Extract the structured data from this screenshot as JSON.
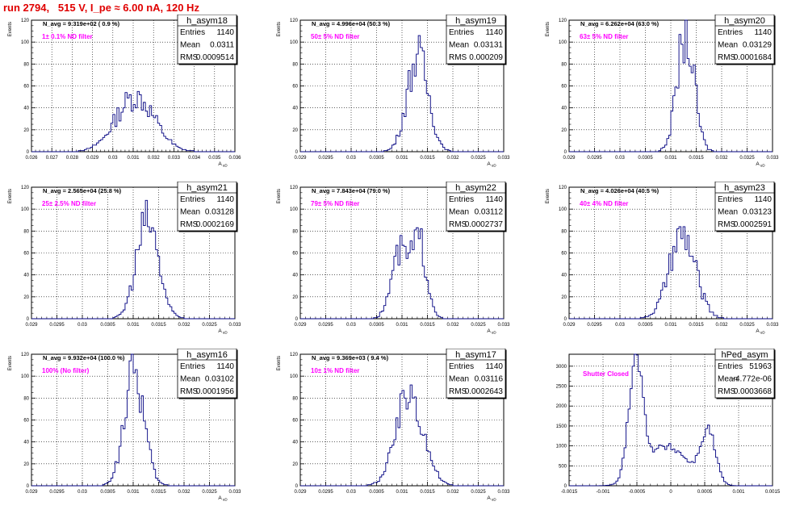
{
  "page_title": "run 2794,   515 V, I_pe ≈ 6.00 nA, 120 Hz",
  "colors": {
    "title": "#e00000",
    "histogram": "#000080",
    "annotation": "#ff00ff",
    "grid": "#000000"
  },
  "chart_data": [
    {
      "type": "histogram",
      "name": "h_asym18",
      "entries": "1140",
      "mean": "0.0311",
      "rms": "0.0009514",
      "navg": "N_avg = 9.319e+02 ( 0.9 %)",
      "filter": "1± 0.1% ND filter",
      "ylabel": "Events",
      "xlabel": "A_uD",
      "xlim": [
        0.026,
        0.036
      ],
      "ylim": [
        0,
        120
      ],
      "yticks": [
        0,
        20,
        40,
        60,
        80,
        100,
        120
      ],
      "xticks": [
        0.026,
        0.027,
        0.028,
        0.029,
        0.03,
        0.031,
        0.032,
        0.033,
        0.034,
        0.035,
        0.036
      ],
      "xticklabels": [
        "0.026",
        "0.027",
        "0.028",
        "0.029",
        "0.03",
        "0.031",
        "0.032",
        "0.033",
        "0.034",
        "0.035",
        "0.036"
      ],
      "mu": 0.0311,
      "sigma": 0.00095,
      "peak": 50,
      "binw": 0.0001
    },
    {
      "type": "histogram",
      "name": "h_asym19",
      "entries": "1140",
      "mean": "0.03131",
      "rms": "0.000209",
      "navg": "N_avg = 4.996e+04 (50.3 %)",
      "filter": "50± 5% ND filter",
      "ylabel": "Events",
      "xlabel": "A_uD",
      "xlim": [
        0.029,
        0.033
      ],
      "ylim": [
        0,
        120
      ],
      "yticks": [
        0,
        20,
        40,
        60,
        80,
        100,
        120
      ],
      "xticks": [
        0.029,
        0.0295,
        0.03,
        0.0305,
        0.031,
        0.0315,
        0.032,
        0.0325,
        0.033
      ],
      "xticklabels": [
        "0.029",
        "0.0295",
        "0.03",
        "0.0305",
        "0.031",
        "0.0315",
        "0.032",
        "0.0325",
        "0.033"
      ],
      "mu": 0.03131,
      "sigma": 0.000209,
      "peak": 87,
      "binw": 4e-05
    },
    {
      "type": "histogram",
      "name": "h_asym20",
      "entries": "1140",
      "mean": "0.03129",
      "rms": "0.0001684",
      "navg": "N_avg = 6.262e+04 (63.0 %)",
      "filter": "63± 5% ND filter",
      "ylabel": "Events",
      "xlabel": "A_uD",
      "xlim": [
        0.029,
        0.033
      ],
      "ylim": [
        0,
        120
      ],
      "yticks": [
        0,
        20,
        40,
        60,
        80,
        100,
        120
      ],
      "xticks": [
        0.029,
        0.0295,
        0.03,
        0.0305,
        0.031,
        0.0315,
        0.032,
        0.0325,
        0.033
      ],
      "xticklabels": [
        "0.029",
        "0.0295",
        "0.03",
        "0.0305",
        "0.031",
        "0.0315",
        "0.032",
        "0.0325",
        "0.033"
      ],
      "mu": 0.03129,
      "sigma": 0.000168,
      "peak": 107,
      "binw": 4e-05
    },
    {
      "type": "histogram",
      "name": "h_asym21",
      "entries": "1140",
      "mean": "0.03128",
      "rms": "0.0002169",
      "navg": "N_avg = 2.565e+04 (25.8 %)",
      "filter": "25± 2.5% ND filter",
      "ylabel": "Events",
      "xlabel": "A_uD",
      "xlim": [
        0.029,
        0.033
      ],
      "ylim": [
        0,
        120
      ],
      "yticks": [
        0,
        20,
        40,
        60,
        80,
        100,
        120
      ],
      "xticks": [
        0.029,
        0.0295,
        0.03,
        0.0305,
        0.031,
        0.0315,
        0.032,
        0.0325,
        0.033
      ],
      "xticklabels": [
        "0.029",
        "0.0295",
        "0.03",
        "0.0305",
        "0.031",
        "0.0315",
        "0.032",
        "0.0325",
        "0.033"
      ],
      "mu": 0.03128,
      "sigma": 0.000217,
      "peak": 89,
      "binw": 4e-05
    },
    {
      "type": "histogram",
      "name": "h_asym22",
      "entries": "1140",
      "mean": "0.03112",
      "rms": "0.0002737",
      "navg": "N_avg = 7.843e+04 (79.0 %)",
      "filter": "79± 5% ND filter",
      "ylabel": "Events",
      "xlabel": "A_uD",
      "xlim": [
        0.029,
        0.033
      ],
      "ylim": [
        0,
        120
      ],
      "yticks": [
        0,
        20,
        40,
        60,
        80,
        100,
        120
      ],
      "xticks": [
        0.029,
        0.0295,
        0.03,
        0.0305,
        0.031,
        0.0315,
        0.032,
        0.0325,
        0.033
      ],
      "xticklabels": [
        "0.029",
        "0.0295",
        "0.03",
        "0.0305",
        "0.031",
        "0.0315",
        "0.032",
        "0.0325",
        "0.033"
      ],
      "mu": 0.03112,
      "sigma": 0.000274,
      "peak": 68,
      "binw": 4e-05,
      "bimodal": true
    },
    {
      "type": "histogram",
      "name": "h_asym23",
      "entries": "1140",
      "mean": "0.03123",
      "rms": "0.0002591",
      "navg": "N_avg = 4.026e+04 (40.5 %)",
      "filter": "40± 4% ND filter",
      "ylabel": "Events",
      "xlabel": "A_uD",
      "xlim": [
        0.029,
        0.033
      ],
      "ylim": [
        0,
        120
      ],
      "yticks": [
        0,
        20,
        40,
        60,
        80,
        100,
        120
      ],
      "xticks": [
        0.029,
        0.0295,
        0.03,
        0.0305,
        0.031,
        0.0315,
        0.032,
        0.0325,
        0.033
      ],
      "xticklabels": [
        "0.029",
        "0.0295",
        "0.03",
        "0.0305",
        "0.031",
        "0.0315",
        "0.032",
        "0.0325",
        "0.033"
      ],
      "mu": 0.03123,
      "sigma": 0.000259,
      "peak": 75,
      "binw": 4e-05
    },
    {
      "type": "histogram",
      "name": "h_asym16",
      "entries": "1140",
      "mean": "0.03102",
      "rms": "0.0001956",
      "navg": "N_avg = 9.932e+04 (100.0 %)",
      "filter": "100% (No filter)",
      "ylabel": "Events",
      "xlabel": "A_uD",
      "xlim": [
        0.029,
        0.033
      ],
      "ylim": [
        0,
        120
      ],
      "yticks": [
        0,
        20,
        40,
        60,
        80,
        100,
        120
      ],
      "xticks": [
        0.029,
        0.0295,
        0.03,
        0.0305,
        0.031,
        0.0315,
        0.032,
        0.0325,
        0.033
      ],
      "xticklabels": [
        "0.029",
        "0.0295",
        "0.03",
        "0.0305",
        "0.031",
        "0.0315",
        "0.032",
        "0.0325",
        "0.033"
      ],
      "mu": 0.03102,
      "sigma": 0.000196,
      "peak": 103,
      "binw": 4e-05
    },
    {
      "type": "histogram",
      "name": "h_asym17",
      "entries": "1140",
      "mean": "0.03116",
      "rms": "0.0002643",
      "navg": "N_avg = 9.369e+03 ( 9.4 %)",
      "filter": "10± 1% ND filter",
      "ylabel": "Events",
      "xlabel": "A_uD",
      "xlim": [
        0.029,
        0.033
      ],
      "ylim": [
        0,
        120
      ],
      "yticks": [
        0,
        20,
        40,
        60,
        80,
        100,
        120
      ],
      "xticks": [
        0.029,
        0.0295,
        0.03,
        0.0305,
        0.031,
        0.0315,
        0.032,
        0.0325,
        0.033
      ],
      "xticklabels": [
        "0.029",
        "0.0295",
        "0.03",
        "0.0305",
        "0.031",
        "0.0315",
        "0.032",
        "0.0325",
        "0.033"
      ],
      "mu": 0.03116,
      "sigma": 0.000264,
      "peak": 85,
      "binw": 4e-05
    },
    {
      "type": "histogram",
      "name": "hPed_asym",
      "entries": "51963",
      "mean": "-4.772e-06",
      "rms": "0.0003668",
      "navg": "",
      "filter": "Shutter Closed",
      "ylabel": "",
      "xlabel": "",
      "xlim": [
        -0.0015,
        0.0015
      ],
      "ylim": [
        0,
        3300
      ],
      "yticks": [
        0,
        500,
        1000,
        1500,
        2000,
        2500,
        3000
      ],
      "xticks": [
        -0.0015,
        -0.001,
        -0.0005,
        0,
        0.0005,
        0.001,
        0.0015
      ],
      "xticklabels": [
        "-0.0015",
        "-0.001",
        "-0.0005",
        "0",
        "0.0005",
        "0.001",
        "0.0015"
      ],
      "pedestal": true,
      "binw": 3e-05
    }
  ]
}
